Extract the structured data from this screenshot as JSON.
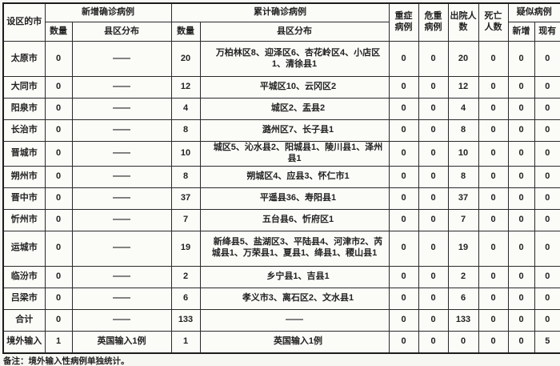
{
  "table": {
    "header": {
      "city": "设区的市",
      "new_confirmed": "新增确诊病例",
      "cumulative_confirmed": "累计确诊病例",
      "count_new": "数量",
      "district_distribution_new": "县区分布",
      "count_cum": "数量",
      "district_distribution_cum": "县区分布",
      "severe": "重症病例",
      "critical": "危重病例",
      "discharged": "出院人数",
      "deaths": "死亡人数",
      "suspected": "疑似病例",
      "suspected_new": "新增",
      "suspected_existing": "现有"
    },
    "rows": [
      {
        "city": "太原市",
        "new_count": "0",
        "new_dist": "——",
        "cum_count": "20",
        "cum_dist": "万柏林区8、迎泽区6、杏花岭区4、小店区1、清徐县1",
        "severe": "0",
        "critical": "0",
        "discharged": "20",
        "deaths": "0",
        "susp_new": "0",
        "susp_existing": "0"
      },
      {
        "city": "大同市",
        "new_count": "0",
        "new_dist": "——",
        "cum_count": "12",
        "cum_dist": "平城区10、云冈区2",
        "severe": "0",
        "critical": "0",
        "discharged": "12",
        "deaths": "0",
        "susp_new": "0",
        "susp_existing": "0"
      },
      {
        "city": "阳泉市",
        "new_count": "0",
        "new_dist": "——",
        "cum_count": "4",
        "cum_dist": "城区2、盂县2",
        "severe": "0",
        "critical": "0",
        "discharged": "4",
        "deaths": "0",
        "susp_new": "0",
        "susp_existing": "0"
      },
      {
        "city": "长治市",
        "new_count": "0",
        "new_dist": "——",
        "cum_count": "8",
        "cum_dist": "潞州区7、长子县1",
        "severe": "0",
        "critical": "0",
        "discharged": "8",
        "deaths": "0",
        "susp_new": "0",
        "susp_existing": "0"
      },
      {
        "city": "晋城市",
        "new_count": "0",
        "new_dist": "——",
        "cum_count": "10",
        "cum_dist": "城区5、沁水县2、阳城县1、陵川县1、泽州县1",
        "severe": "0",
        "critical": "0",
        "discharged": "10",
        "deaths": "0",
        "susp_new": "0",
        "susp_existing": "0"
      },
      {
        "city": "朔州市",
        "new_count": "0",
        "new_dist": "——",
        "cum_count": "8",
        "cum_dist": "朔城区4、应县3、怀仁市1",
        "severe": "0",
        "critical": "0",
        "discharged": "8",
        "deaths": "0",
        "susp_new": "0",
        "susp_existing": "0"
      },
      {
        "city": "晋中市",
        "new_count": "0",
        "new_dist": "——",
        "cum_count": "37",
        "cum_dist": "平遥县36、寿阳县1",
        "severe": "0",
        "critical": "0",
        "discharged": "37",
        "deaths": "0",
        "susp_new": "0",
        "susp_existing": "0"
      },
      {
        "city": "忻州市",
        "new_count": "0",
        "new_dist": "——",
        "cum_count": "7",
        "cum_dist": "五台县6、忻府区1",
        "severe": "0",
        "critical": "0",
        "discharged": "7",
        "deaths": "0",
        "susp_new": "0",
        "susp_existing": "0"
      },
      {
        "city": "运城市",
        "new_count": "0",
        "new_dist": "——",
        "cum_count": "19",
        "cum_dist": "新绛县5、盐湖区3、平陆县4、河津市2、芮城县1、万荣县1、夏县1、绛县1、稷山县1",
        "severe": "0",
        "critical": "0",
        "discharged": "19",
        "deaths": "0",
        "susp_new": "0",
        "susp_existing": "0"
      },
      {
        "city": "临汾市",
        "new_count": "0",
        "new_dist": "——",
        "cum_count": "2",
        "cum_dist": "乡宁县1、吉县1",
        "severe": "0",
        "critical": "0",
        "discharged": "2",
        "deaths": "0",
        "susp_new": "0",
        "susp_existing": "0"
      },
      {
        "city": "吕梁市",
        "new_count": "0",
        "new_dist": "——",
        "cum_count": "6",
        "cum_dist": "孝义市3、离石区2、文水县1",
        "severe": "0",
        "critical": "0",
        "discharged": "6",
        "deaths": "0",
        "susp_new": "0",
        "susp_existing": "0"
      },
      {
        "city": "合计",
        "new_count": "0",
        "new_dist": "——",
        "cum_count": "133",
        "cum_dist": "——",
        "severe": "0",
        "critical": "0",
        "discharged": "133",
        "deaths": "0",
        "susp_new": "0",
        "susp_existing": "0"
      },
      {
        "city": "境外输入",
        "new_count": "1",
        "new_dist": "英国输入1例",
        "cum_count": "1",
        "cum_dist": "英国输入1例",
        "severe": "0",
        "critical": "0",
        "discharged": "0",
        "deaths": "0",
        "susp_new": "0",
        "susp_existing": "5"
      }
    ],
    "note": "备注：境外输入性病例单独统计。"
  }
}
